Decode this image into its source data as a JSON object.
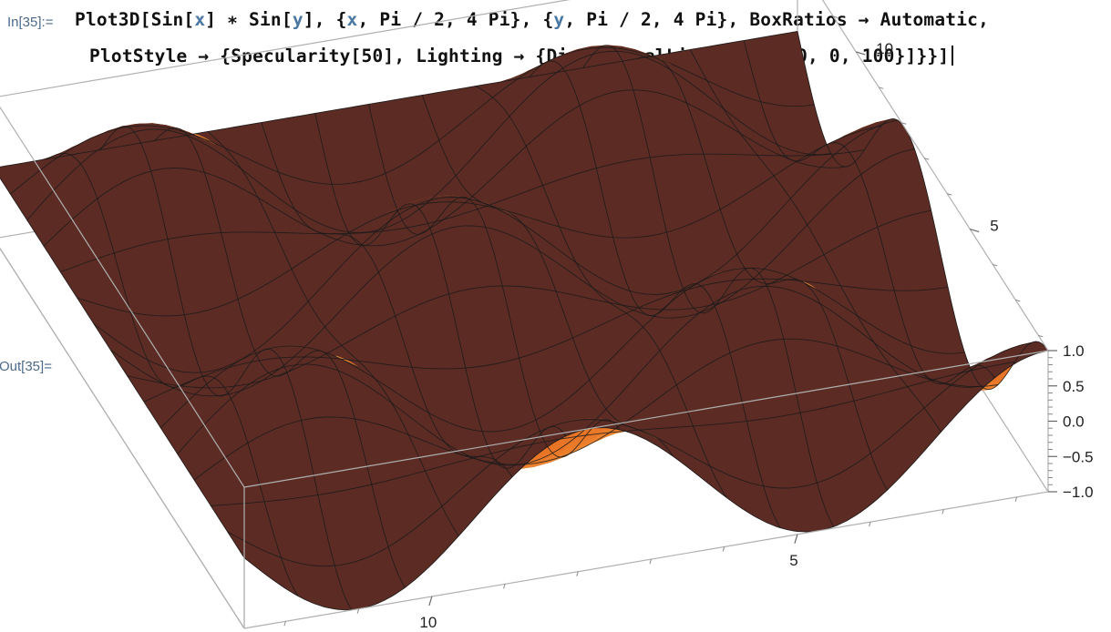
{
  "notebook": {
    "input_label": "In[35]:=",
    "output_label": "Out[35]=",
    "code_line1": [
      {
        "t": "Plot3D[Sin[",
        "c": "k"
      },
      {
        "t": "x",
        "c": "v"
      },
      {
        "t": "] ∗ Sin[",
        "c": "k"
      },
      {
        "t": "y",
        "c": "v"
      },
      {
        "t": "], {",
        "c": "k"
      },
      {
        "t": "x",
        "c": "v"
      },
      {
        "t": ", Pi / 2, 4 Pi}, {",
        "c": "k"
      },
      {
        "t": "y",
        "c": "v"
      },
      {
        "t": ", Pi / 2, 4 Pi}, BoxRatios → Automatic,",
        "c": "k"
      }
    ],
    "code_line2": "PlotStyle → {Specularity[50], Lighting → {DirectionalLight[Red, {0, 0, 100}]}}]"
  },
  "chart_data": {
    "type": "surface3d",
    "function": "Sin[x]*Sin[y]",
    "x_range": [
      1.5708,
      12.5664
    ],
    "y_range": [
      1.5708,
      12.5664
    ],
    "z_range": [
      -1,
      1
    ],
    "x_ticks": [
      "5",
      "10"
    ],
    "y_ticks": [
      "5",
      "10"
    ],
    "z_ticks": [
      "1.0",
      "0.5",
      "0.0",
      "−0.5",
      "−1.0"
    ],
    "box": true,
    "mesh": true,
    "colors": {
      "surface_light": "#fff6c2",
      "surface_mid": "#ffb04a",
      "surface_dark": "#e2621a",
      "underside": "#5a2a22",
      "mesh": "#1a1a1a"
    }
  }
}
